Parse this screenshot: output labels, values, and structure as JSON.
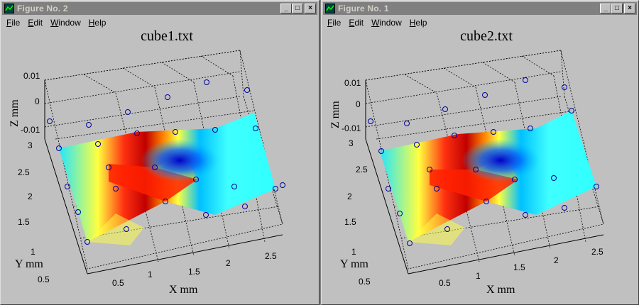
{
  "windows": [
    {
      "title": "Figure No. 2",
      "menu": [
        "File",
        "Edit",
        "Window",
        "Help"
      ],
      "plot_title": "cube1.txt"
    },
    {
      "title": "Figure No. 1",
      "menu": [
        "File",
        "Edit",
        "Window",
        "Help"
      ],
      "plot_title": "cube2.txt"
    }
  ],
  "titlebar_buttons": {
    "minimize": "_",
    "maximize": "□",
    "close": "×"
  },
  "chart_data": [
    {
      "type": "surface",
      "title": "cube1.txt",
      "xlabel": "X mm",
      "ylabel": "Y mm",
      "zlabel": "Z mm",
      "x_ticks": [
        "0.5",
        "1",
        "1.5",
        "2",
        "2.5"
      ],
      "y_ticks": [
        "0.5",
        "1",
        "1.5",
        "2",
        "2.5",
        "3"
      ],
      "z_ticks": [
        "-0.01",
        "0",
        "0.01"
      ],
      "grid": true,
      "marker": "circle",
      "colormap": "jet"
    },
    {
      "type": "surface",
      "title": "cube2.txt",
      "xlabel": "X mm",
      "ylabel": "Y mm",
      "zlabel": "Z mm",
      "x_ticks": [
        "0.5",
        "1",
        "1.5",
        "2",
        "2.5"
      ],
      "y_ticks": [
        "0.5",
        "1",
        "1.5",
        "2",
        "2.5",
        "3"
      ],
      "z_ticks": [
        "-0.01",
        "0",
        "0.01"
      ],
      "grid": true,
      "marker": "circle",
      "colormap": "jet"
    }
  ]
}
